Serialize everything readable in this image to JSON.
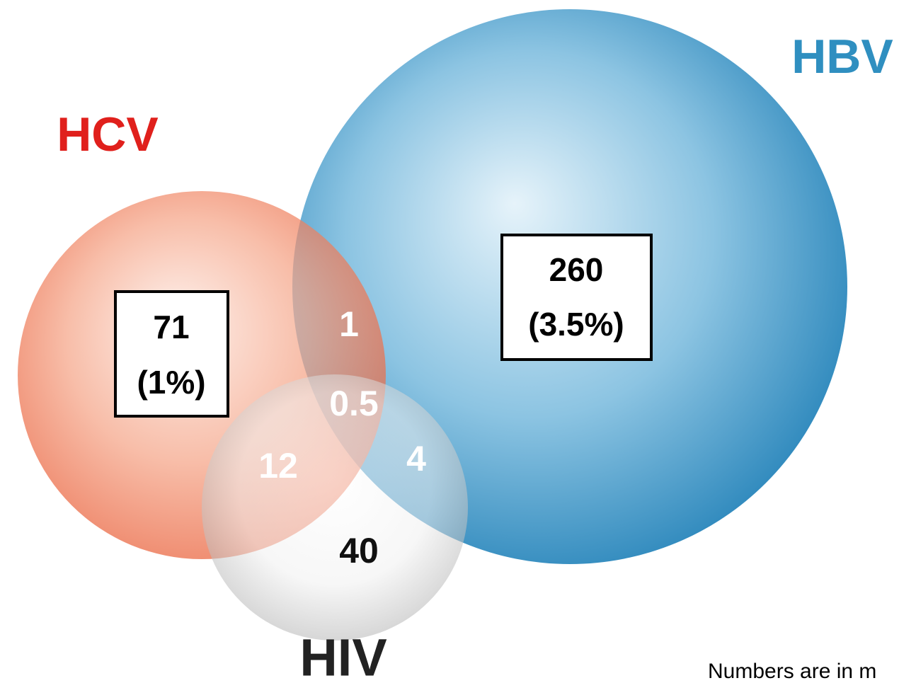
{
  "sets": [
    {
      "label": "HCV"
    },
    {
      "label": "HBV"
    },
    {
      "label": "HIV"
    }
  ],
  "regions": [
    {
      "label": "71",
      "sublabel": "(1%)"
    },
    {
      "label": "260",
      "sublabel": "(3.5%)"
    },
    {
      "label": "1"
    },
    {
      "label": "0.5"
    },
    {
      "label": "12"
    },
    {
      "label": "4"
    },
    {
      "label": "40"
    }
  ],
  "footnote": "Numbers are in m"
}
